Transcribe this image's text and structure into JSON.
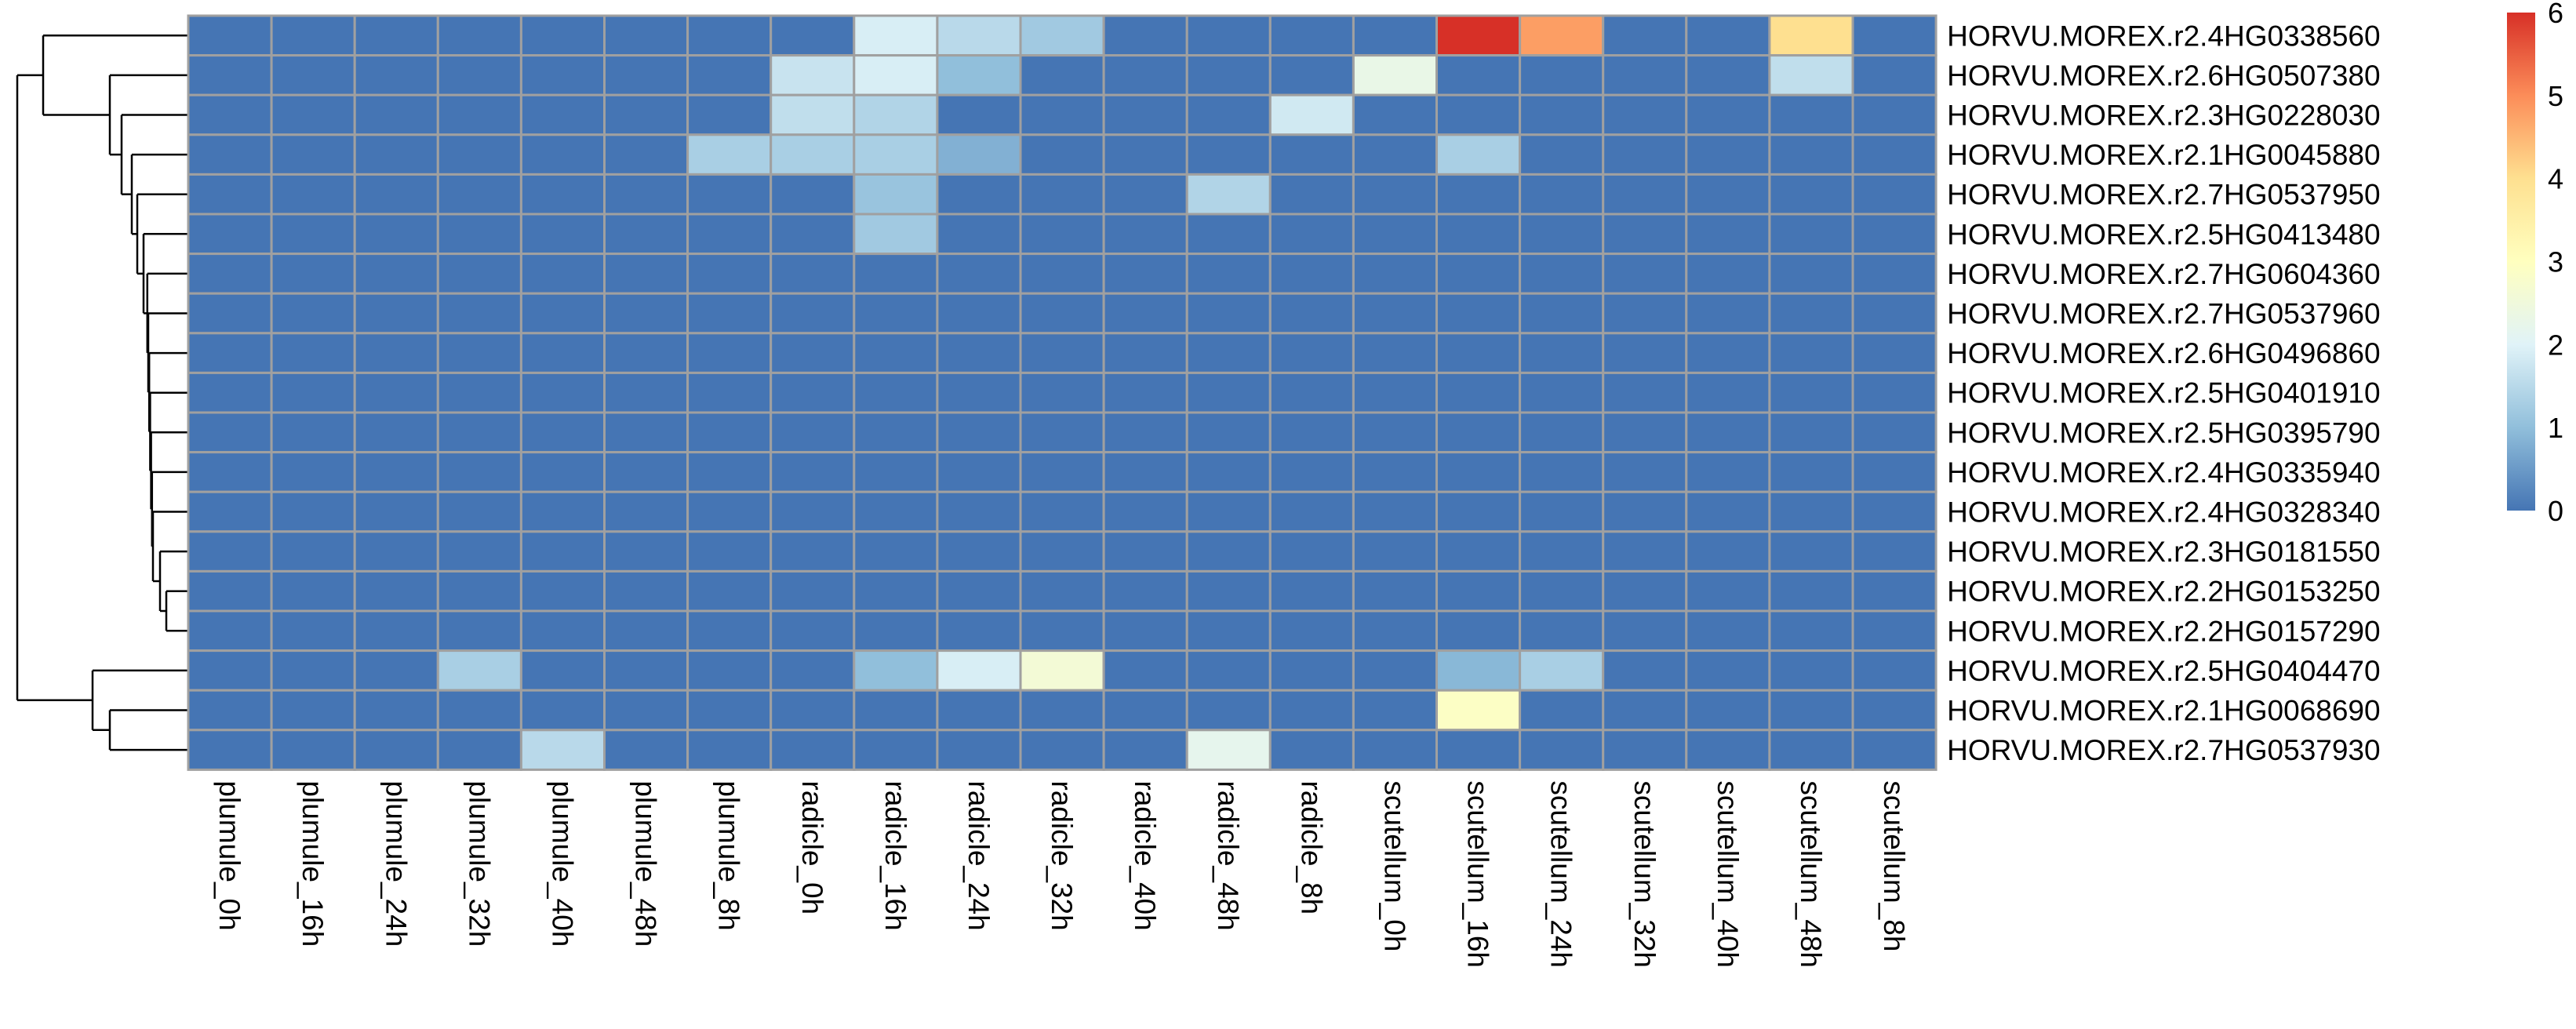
{
  "chart_data": {
    "type": "heatmap",
    "title": "",
    "xlabel": "",
    "ylabel": "",
    "columns": [
      "plumule_0h",
      "plumule_16h",
      "plumule_24h",
      "plumule_32h",
      "plumule_40h",
      "plumule_48h",
      "plumule_8h",
      "radicle_0h",
      "radicle_16h",
      "radicle_24h",
      "radicle_32h",
      "radicle_40h",
      "radicle_48h",
      "radicle_8h",
      "scutellum_0h",
      "scutellum_16h",
      "scutellum_24h",
      "scutellum_32h",
      "scutellum_40h",
      "scutellum_48h",
      "scutellum_8h"
    ],
    "rows": [
      "HORVU.MOREX.r2.4HG0338560",
      "HORVU.MOREX.r2.6HG0507380",
      "HORVU.MOREX.r2.3HG0228030",
      "HORVU.MOREX.r2.1HG0045880",
      "HORVU.MOREX.r2.7HG0537950",
      "HORVU.MOREX.r2.5HG0413480",
      "HORVU.MOREX.r2.7HG0604360",
      "HORVU.MOREX.r2.7HG0537960",
      "HORVU.MOREX.r2.6HG0496860",
      "HORVU.MOREX.r2.5HG0401910",
      "HORVU.MOREX.r2.5HG0395790",
      "HORVU.MOREX.r2.4HG0335940",
      "HORVU.MOREX.r2.4HG0328340",
      "HORVU.MOREX.r2.3HG0181550",
      "HORVU.MOREX.r2.2HG0153250",
      "HORVU.MOREX.r2.2HG0157290",
      "HORVU.MOREX.r2.5HG0404470",
      "HORVU.MOREX.r2.1HG0068690",
      "HORVU.MOREX.r2.7HG0537930"
    ],
    "values": [
      [
        0,
        0,
        0,
        0,
        0,
        0,
        0,
        0,
        1.9,
        1.5,
        1.2,
        0,
        0,
        0,
        0,
        6,
        4.8,
        0,
        0,
        4,
        0
      ],
      [
        0,
        0,
        0,
        0,
        0,
        0,
        0,
        1.7,
        1.9,
        1,
        0,
        0,
        0,
        0,
        2.3,
        0,
        0,
        0,
        0,
        1.6,
        0
      ],
      [
        0,
        0,
        0,
        0,
        0,
        0,
        0,
        1.6,
        1.4,
        0,
        0,
        0,
        0,
        1.8,
        0,
        0,
        0,
        0,
        0,
        0,
        0
      ],
      [
        0,
        0,
        0,
        0,
        0,
        0,
        1.3,
        1.3,
        1.3,
        0.8,
        0,
        0,
        0,
        0,
        0,
        1.3,
        0,
        0,
        0,
        0,
        0
      ],
      [
        0,
        0,
        0,
        0,
        0,
        0,
        0,
        0,
        1.1,
        0,
        0,
        0,
        1.4,
        0,
        0,
        0,
        0,
        0,
        0,
        0,
        0
      ],
      [
        0,
        0,
        0,
        0,
        0,
        0,
        0,
        0,
        1.2,
        0,
        0,
        0,
        0,
        0,
        0,
        0,
        0,
        0,
        0,
        0,
        0
      ],
      [
        0,
        0,
        0,
        0,
        0,
        0,
        0,
        0,
        0,
        0,
        0,
        0,
        0,
        0,
        0,
        0,
        0,
        0,
        0,
        0,
        0
      ],
      [
        0,
        0,
        0,
        0,
        0,
        0,
        0,
        0,
        0,
        0,
        0,
        0,
        0,
        0,
        0,
        0,
        0,
        0,
        0,
        0,
        0
      ],
      [
        0,
        0,
        0,
        0,
        0,
        0,
        0,
        0,
        0,
        0,
        0,
        0,
        0,
        0,
        0,
        0,
        0,
        0,
        0,
        0,
        0
      ],
      [
        0,
        0,
        0,
        0,
        0,
        0,
        0,
        0,
        0,
        0,
        0,
        0,
        0,
        0,
        0,
        0,
        0,
        0,
        0,
        0,
        0
      ],
      [
        0,
        0,
        0,
        0,
        0,
        0,
        0,
        0,
        0,
        0,
        0,
        0,
        0,
        0,
        0,
        0,
        0,
        0,
        0,
        0,
        0
      ],
      [
        0,
        0,
        0,
        0,
        0,
        0,
        0,
        0,
        0,
        0,
        0,
        0,
        0,
        0,
        0,
        0,
        0,
        0,
        0,
        0,
        0
      ],
      [
        0,
        0,
        0,
        0,
        0,
        0,
        0,
        0,
        0,
        0,
        0,
        0,
        0,
        0,
        0,
        0,
        0,
        0,
        0,
        0,
        0
      ],
      [
        0,
        0,
        0,
        0,
        0,
        0,
        0,
        0,
        0,
        0,
        0,
        0,
        0,
        0,
        0,
        0,
        0,
        0,
        0,
        0,
        0
      ],
      [
        0,
        0,
        0,
        0,
        0,
        0,
        0,
        0,
        0,
        0,
        0,
        0,
        0,
        0,
        0,
        0,
        0,
        0,
        0,
        0,
        0
      ],
      [
        0,
        0,
        0,
        0,
        0,
        0,
        0,
        0,
        0,
        0,
        0,
        0,
        0,
        0,
        0,
        0,
        0,
        0,
        0,
        0,
        0
      ],
      [
        0,
        0,
        0,
        1.3,
        0,
        0,
        0,
        0,
        1,
        1.9,
        2.6,
        0,
        0,
        0,
        0,
        0.9,
        1.3,
        0,
        0,
        0,
        0
      ],
      [
        0,
        0,
        0,
        0,
        0,
        0,
        0,
        0,
        0,
        0,
        0,
        0,
        0,
        0,
        0,
        2.9,
        0,
        0,
        0,
        0,
        0
      ],
      [
        0,
        0,
        0,
        0,
        1.5,
        0,
        0,
        0,
        0,
        0,
        0,
        0,
        2.2,
        0,
        0,
        0,
        0,
        0,
        0,
        0,
        0
      ]
    ],
    "color_scale": {
      "min": 0,
      "max": 6,
      "ticks": [
        0,
        1,
        2,
        3,
        4,
        5,
        6
      ],
      "stops": [
        {
          "value": 0,
          "color": "#4575B4"
        },
        {
          "value": 1,
          "color": "#91BFDB"
        },
        {
          "value": 2,
          "color": "#E0F3F8"
        },
        {
          "value": 3,
          "color": "#FFFFBF"
        },
        {
          "value": 4,
          "color": "#FEE090"
        },
        {
          "value": 5,
          "color": "#FC8D59"
        },
        {
          "value": 6,
          "color": "#D73027"
        }
      ]
    },
    "cell_border_color": "#A0A0A0",
    "row_dendrogram": "left",
    "legend": "right"
  }
}
